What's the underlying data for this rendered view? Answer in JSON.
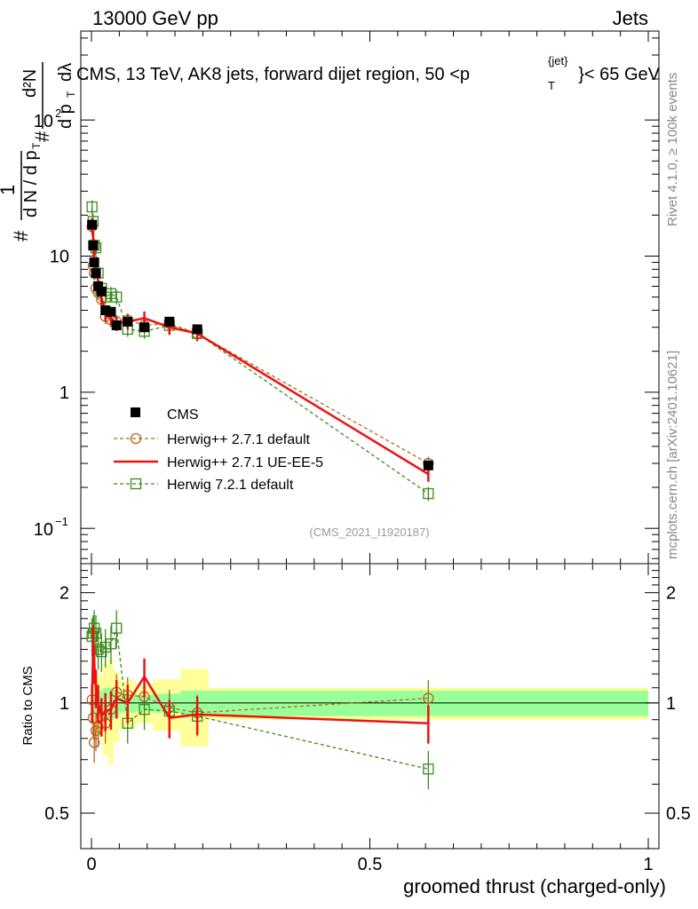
{
  "header": {
    "energy_label": "13000 GeV pp",
    "category_label": "Jets",
    "plot_title": "CMS, 13 TeV, AK8 jets, forward dijet region, 50 <p",
    "title_sup": "{jet}",
    "title_sub": "T",
    "title_end": "}< 65 GeV",
    "side_label_top": "Rivet 4.1.0, ≥ 100k events",
    "side_label_bottom": "mcplots.cern.ch [arXiv:2401.10621]",
    "analysis_id": "(CMS_2021_I1920187)"
  },
  "axes": {
    "xlabel": "groomed thrust (charged-only)",
    "ylabel_top": "1/N dN/dp_T d²N/dp_T dλ",
    "ylabel_bottom": "Ratio to CMS",
    "x_ticks": [
      "0",
      "0.5",
      "1"
    ],
    "y_ticks_main": [
      "10",
      "1"
    ],
    "y_ticks_main_exp": [
      {
        "base": "10",
        "exp": "2"
      },
      {
        "base": "10",
        "exp": "−1"
      }
    ],
    "y_ticks_ratio": [
      "2",
      "1",
      "0.5"
    ]
  },
  "legend": {
    "cms": "CMS",
    "herwig_default": "Herwig++ 2.7.1 default",
    "herwig_ueee5": "Herwig++ 2.7.1 UE-EE-5",
    "herwig7": "Herwig 7.2.1 default"
  },
  "colors": {
    "data": "#000000",
    "herwig_default": "#b5651d",
    "herwig_ueee5": "#ee1111",
    "herwig7": "#3a8c1a",
    "band_inner": "#99ff99",
    "band_outer": "#ffff99"
  },
  "chart_data": {
    "type": "scatter",
    "title": "CMS, 13 TeV, AK8 jets, forward dijet region, 50 < p_T^{jet} < 65 GeV",
    "xlabel": "groomed thrust (charged-only)",
    "ylabel": "1/N dN/dp_T d²N/dp_T dλ",
    "xlim": [
      0,
      1
    ],
    "ylim": [
      0.055,
      450
    ],
    "yscale": "log",
    "ratio_ylim": [
      0.4,
      2.4
    ],
    "x": [
      0.001,
      0.003,
      0.005,
      0.008,
      0.012,
      0.018,
      0.025,
      0.035,
      0.045,
      0.065,
      0.095,
      0.14,
      0.19,
      0.605
    ],
    "series": [
      {
        "name": "CMS",
        "style": "markers",
        "values": [
          17,
          12,
          9,
          7.5,
          6,
          5.5,
          4.0,
          3.9,
          3.1,
          3.3,
          3.0,
          3.3,
          2.9,
          0.29
        ]
      },
      {
        "name": "Herwig++ 2.7.1 default",
        "style": "open-circle-dashed",
        "values": [
          16.5,
          8.5,
          7.5,
          5.8,
          5.4,
          4.8,
          3.6,
          3.4,
          3.3,
          3.4,
          3.1,
          3.2,
          2.7,
          0.3
        ],
        "ratio": [
          1.02,
          0.91,
          0.78,
          0.84,
          0.86,
          0.92,
          0.88,
          0.96,
          1.07,
          1.05,
          1.04,
          0.97,
          0.94,
          1.03
        ]
      },
      {
        "name": "Herwig++ 2.7.1 UE-EE-5",
        "style": "solid-line",
        "values": [
          17,
          13.5,
          10,
          8.2,
          6.5,
          5.0,
          3.8,
          3.5,
          3.2,
          3.3,
          3.5,
          3.0,
          2.7,
          0.25
        ],
        "ratio": [
          1.0,
          1.45,
          1.28,
          1.1,
          1.0,
          0.92,
          0.95,
          0.96,
          1.03,
          1.0,
          1.18,
          0.91,
          0.93,
          0.88
        ]
      },
      {
        "name": "Herwig 7.2.1 default",
        "style": "open-square-dashed",
        "values": [
          23,
          18,
          12,
          11.5,
          7.5,
          5.8,
          5.0,
          5.3,
          5.0,
          2.9,
          2.8,
          3.1,
          2.7,
          0.18
        ],
        "ratio": [
          1.52,
          1.55,
          1.6,
          1.55,
          1.4,
          1.38,
          1.42,
          1.45,
          1.6,
          0.88,
          0.96,
          0.95,
          0.92,
          0.66
        ]
      }
    ],
    "band_edges": [
      0,
      0.004,
      0.008,
      0.012,
      0.02,
      0.03,
      0.04,
      0.05,
      0.08,
      0.11,
      0.16,
      0.21,
      1.0
    ],
    "band_inner_halfwidth": [
      0.05,
      0.06,
      0.07,
      0.08,
      0.1,
      0.1,
      0.09,
      0.06,
      0.05,
      0.06,
      0.08,
      0.08
    ],
    "band_outer_halfwidth": [
      0.12,
      0.14,
      0.18,
      0.2,
      0.28,
      0.32,
      0.22,
      0.15,
      0.12,
      0.16,
      0.24,
      0.1
    ]
  }
}
